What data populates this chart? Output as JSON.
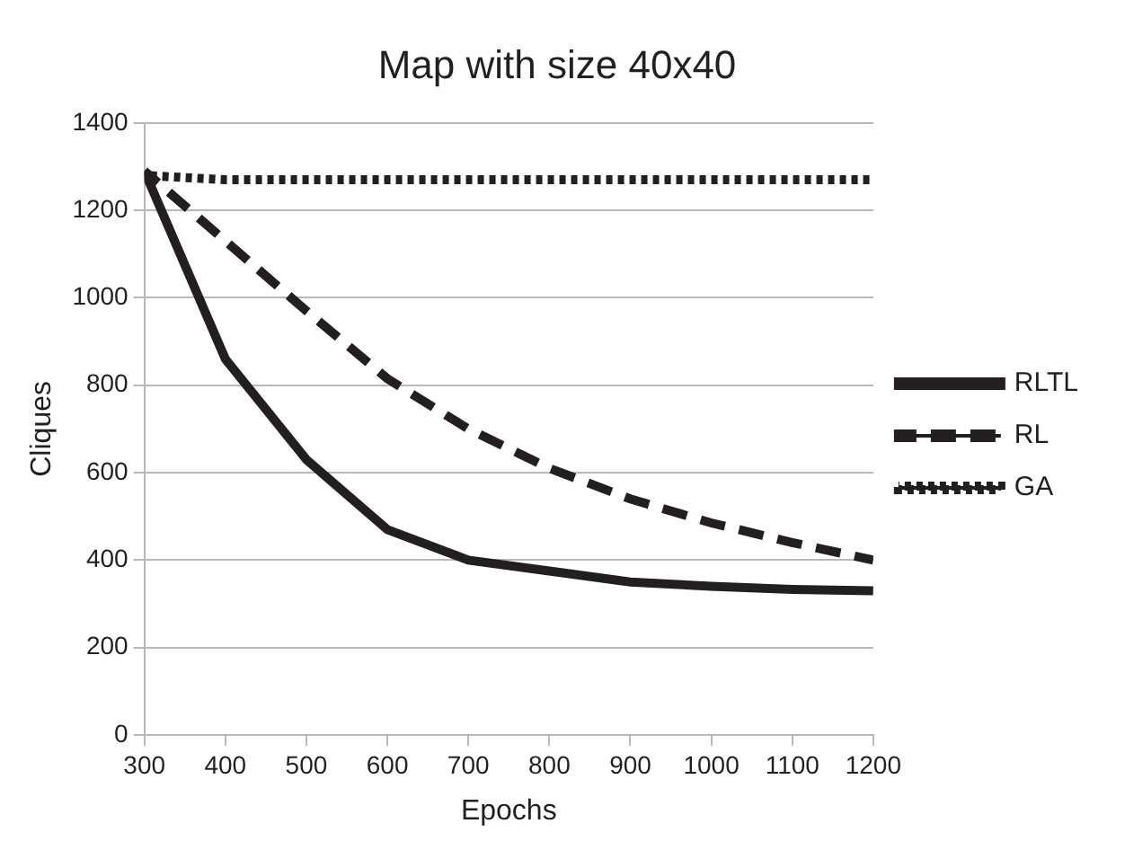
{
  "chart_data": {
    "type": "line",
    "title": "Map with size 40x40",
    "xlabel": "Epochs",
    "ylabel": "Cliques",
    "x": [
      300,
      400,
      500,
      600,
      700,
      800,
      900,
      1000,
      1100,
      1200
    ],
    "series": [
      {
        "name": "RLTL",
        "color": "#231f20",
        "line_style": "solid",
        "values": [
          1290,
          860,
          630,
          470,
          400,
          375,
          350,
          340,
          333,
          330
        ]
      },
      {
        "name": "RL",
        "color": "#231f20",
        "line_style": "dashed",
        "values": [
          1290,
          1130,
          970,
          815,
          700,
          610,
          540,
          485,
          440,
          400
        ]
      },
      {
        "name": "GA",
        "color": "#231f20",
        "line_style": "dotted",
        "values": [
          1280,
          1270,
          1270,
          1270,
          1270,
          1270,
          1270,
          1270,
          1270,
          1270
        ]
      }
    ],
    "xlim": [
      300,
      1200
    ],
    "xticks": [
      300,
      400,
      500,
      600,
      700,
      800,
      900,
      1000,
      1100,
      1200
    ],
    "ylim": [
      0,
      1400
    ],
    "yticks": [
      0,
      200,
      400,
      600,
      800,
      1000,
      1200,
      1400
    ],
    "grid": "y",
    "legend": "right",
    "marker": "none"
  }
}
